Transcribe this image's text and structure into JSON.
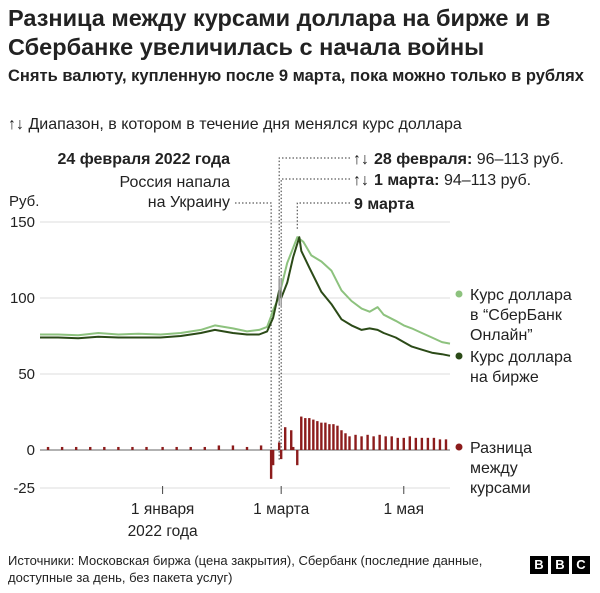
{
  "title": "Разница между курсами доллара на бирже и в Сбербанке увеличилась с начала войны",
  "subtitle": "Снять валюту, купленную после 9 марта, пока можно только в рублях",
  "range_legend": {
    "glyph": "↑↓",
    "text": "Диапазон, в котором в течение дня менялся курс доллара"
  },
  "annotations": {
    "feb24_date": "24 февраля 2022 года",
    "feb24_text_1": "Россия напала",
    "feb24_text_2": "на Украину",
    "feb28_date": "28 февраля:",
    "feb28_range": "96–113 руб.",
    "mar1_date": "1 марта:",
    "mar1_range": "94–113 руб.",
    "mar9_date": "9 марта"
  },
  "series_labels": {
    "sber_1": "Курс доллара",
    "sber_2": "в “СберБанк",
    "sber_3": "Онлайн”",
    "exch_1": "Курс доллара",
    "exch_2": "на бирже",
    "diff_1": "Разница",
    "diff_2": "между",
    "diff_3": "курсами"
  },
  "footer": "Источники: Московская биржа (цена закрытия), Сбербанк (последние данные, доступные за день, без пакета услуг)",
  "logo": [
    "B",
    "B",
    "C"
  ],
  "colors": {
    "sber": "#8dc27e",
    "exchange": "#2b4a17",
    "difference": "#8c1c1c",
    "range": "#9b9b9b"
  },
  "chart_data": {
    "type": "line",
    "ylabel": "Руб.",
    "ylim": [
      -25,
      150
    ],
    "yticks": [
      150,
      100,
      50,
      0,
      -25
    ],
    "ytick_labels": [
      "150",
      "100",
      "50",
      "0",
      "-25"
    ],
    "xlim": [
      "2021-11-01",
      "2022-05-24"
    ],
    "xticks": [
      {
        "date": "2022-01-01",
        "label_1": "1 января",
        "label_2": "2022 года"
      },
      {
        "date": "2022-03-01",
        "label_1": "1 марта",
        "label_2": ""
      },
      {
        "date": "2022-05-01",
        "label_1": "1 мая",
        "label_2": ""
      }
    ],
    "series": [
      {
        "name": "Курс доллара в “СберБанк Онлайн”",
        "key": "sber",
        "points": [
          [
            "2021-11-01",
            76
          ],
          [
            "2021-11-10",
            76
          ],
          [
            "2021-11-20",
            75.5
          ],
          [
            "2021-11-30",
            77
          ],
          [
            "2021-12-10",
            76
          ],
          [
            "2021-12-20",
            76.5
          ],
          [
            "2021-12-31",
            76
          ],
          [
            "2022-01-10",
            77
          ],
          [
            "2022-01-20",
            79
          ],
          [
            "2022-01-27",
            82
          ],
          [
            "2022-02-05",
            80
          ],
          [
            "2022-02-12",
            78
          ],
          [
            "2022-02-18",
            79
          ],
          [
            "2022-02-22",
            81
          ],
          [
            "2022-02-24",
            88
          ],
          [
            "2022-02-25",
            92
          ],
          [
            "2022-02-28",
            101
          ],
          [
            "2022-03-01",
            107
          ],
          [
            "2022-03-04",
            123
          ],
          [
            "2022-03-07",
            133
          ],
          [
            "2022-03-09",
            140
          ],
          [
            "2022-03-12",
            137
          ],
          [
            "2022-03-16",
            128
          ],
          [
            "2022-03-21",
            124
          ],
          [
            "2022-03-26",
            118
          ],
          [
            "2022-03-31",
            105
          ],
          [
            "2022-04-05",
            98
          ],
          [
            "2022-04-10",
            93
          ],
          [
            "2022-04-14",
            91
          ],
          [
            "2022-04-18",
            94
          ],
          [
            "2022-04-21",
            89
          ],
          [
            "2022-04-27",
            85
          ],
          [
            "2022-05-01",
            82
          ],
          [
            "2022-05-05",
            80
          ],
          [
            "2022-05-10",
            77
          ],
          [
            "2022-05-15",
            74
          ],
          [
            "2022-05-20",
            71
          ],
          [
            "2022-05-24",
            70
          ]
        ]
      },
      {
        "name": "Курс доллара на бирже",
        "key": "exchange",
        "points": [
          [
            "2021-11-01",
            74
          ],
          [
            "2021-11-10",
            74
          ],
          [
            "2021-11-20",
            73.5
          ],
          [
            "2021-11-30",
            74.5
          ],
          [
            "2021-12-10",
            74
          ],
          [
            "2021-12-20",
            74
          ],
          [
            "2021-12-31",
            74
          ],
          [
            "2022-01-10",
            75
          ],
          [
            "2022-01-20",
            77
          ],
          [
            "2022-01-27",
            79
          ],
          [
            "2022-02-05",
            77
          ],
          [
            "2022-02-12",
            76
          ],
          [
            "2022-02-18",
            76
          ],
          [
            "2022-02-22",
            78
          ],
          [
            "2022-02-24",
            84
          ],
          [
            "2022-02-25",
            87
          ],
          [
            "2022-02-28",
            105
          ],
          [
            "2022-03-01",
            100
          ],
          [
            "2022-03-04",
            110
          ],
          [
            "2022-03-07",
            127
          ],
          [
            "2022-03-10",
            140
          ],
          [
            "2022-03-11",
            131
          ],
          [
            "2022-03-15",
            120
          ],
          [
            "2022-03-21",
            104
          ],
          [
            "2022-03-26",
            96
          ],
          [
            "2022-03-31",
            86
          ],
          [
            "2022-04-05",
            82
          ],
          [
            "2022-04-10",
            79
          ],
          [
            "2022-04-14",
            80
          ],
          [
            "2022-04-18",
            79
          ],
          [
            "2022-04-21",
            77
          ],
          [
            "2022-04-27",
            74
          ],
          [
            "2022-05-01",
            71
          ],
          [
            "2022-05-05",
            68
          ],
          [
            "2022-05-10",
            66
          ],
          [
            "2022-05-15",
            64
          ],
          [
            "2022-05-20",
            63
          ],
          [
            "2022-05-24",
            62
          ]
        ]
      }
    ],
    "difference": {
      "name": "Разница между курсами",
      "values": [
        [
          "2021-11-05",
          2
        ],
        [
          "2021-11-12",
          2
        ],
        [
          "2021-11-19",
          2
        ],
        [
          "2021-11-26",
          2
        ],
        [
          "2021-12-03",
          2
        ],
        [
          "2021-12-10",
          2
        ],
        [
          "2021-12-17",
          2
        ],
        [
          "2021-12-24",
          2
        ],
        [
          "2022-01-01",
          2
        ],
        [
          "2022-01-08",
          2
        ],
        [
          "2022-01-15",
          2
        ],
        [
          "2022-01-22",
          2
        ],
        [
          "2022-01-29",
          3
        ],
        [
          "2022-02-05",
          3
        ],
        [
          "2022-02-12",
          2
        ],
        [
          "2022-02-19",
          3
        ],
        [
          "2022-02-24",
          -19
        ],
        [
          "2022-02-25",
          -10
        ],
        [
          "2022-02-28",
          5
        ],
        [
          "2022-03-01",
          -6
        ],
        [
          "2022-03-03",
          15
        ],
        [
          "2022-03-06",
          13
        ],
        [
          "2022-03-07",
          2
        ],
        [
          "2022-03-09",
          -10
        ],
        [
          "2022-03-11",
          22
        ],
        [
          "2022-03-13",
          21
        ],
        [
          "2022-03-15",
          21
        ],
        [
          "2022-03-17",
          20
        ],
        [
          "2022-03-19",
          19
        ],
        [
          "2022-03-21",
          18
        ],
        [
          "2022-03-23",
          18
        ],
        [
          "2022-03-25",
          17
        ],
        [
          "2022-03-27",
          17
        ],
        [
          "2022-03-29",
          16
        ],
        [
          "2022-03-31",
          13
        ],
        [
          "2022-04-02",
          11
        ],
        [
          "2022-04-04",
          9
        ],
        [
          "2022-04-07",
          10
        ],
        [
          "2022-04-10",
          9
        ],
        [
          "2022-04-13",
          10
        ],
        [
          "2022-04-16",
          9
        ],
        [
          "2022-04-19",
          10
        ],
        [
          "2022-04-22",
          9
        ],
        [
          "2022-04-25",
          9
        ],
        [
          "2022-04-28",
          8
        ],
        [
          "2022-05-01",
          8
        ],
        [
          "2022-05-04",
          9
        ],
        [
          "2022-05-07",
          8
        ],
        [
          "2022-05-10",
          8
        ],
        [
          "2022-05-13",
          8
        ],
        [
          "2022-05-16",
          8
        ],
        [
          "2022-05-19",
          7
        ],
        [
          "2022-05-22",
          7
        ]
      ]
    },
    "ranges": [
      {
        "date": "2022-02-28",
        "low": 96,
        "high": 113
      },
      {
        "date": "2022-03-01",
        "low": 94,
        "high": 113
      }
    ],
    "markers": [
      "2022-02-24",
      "2022-02-28",
      "2022-03-01",
      "2022-03-09"
    ]
  }
}
